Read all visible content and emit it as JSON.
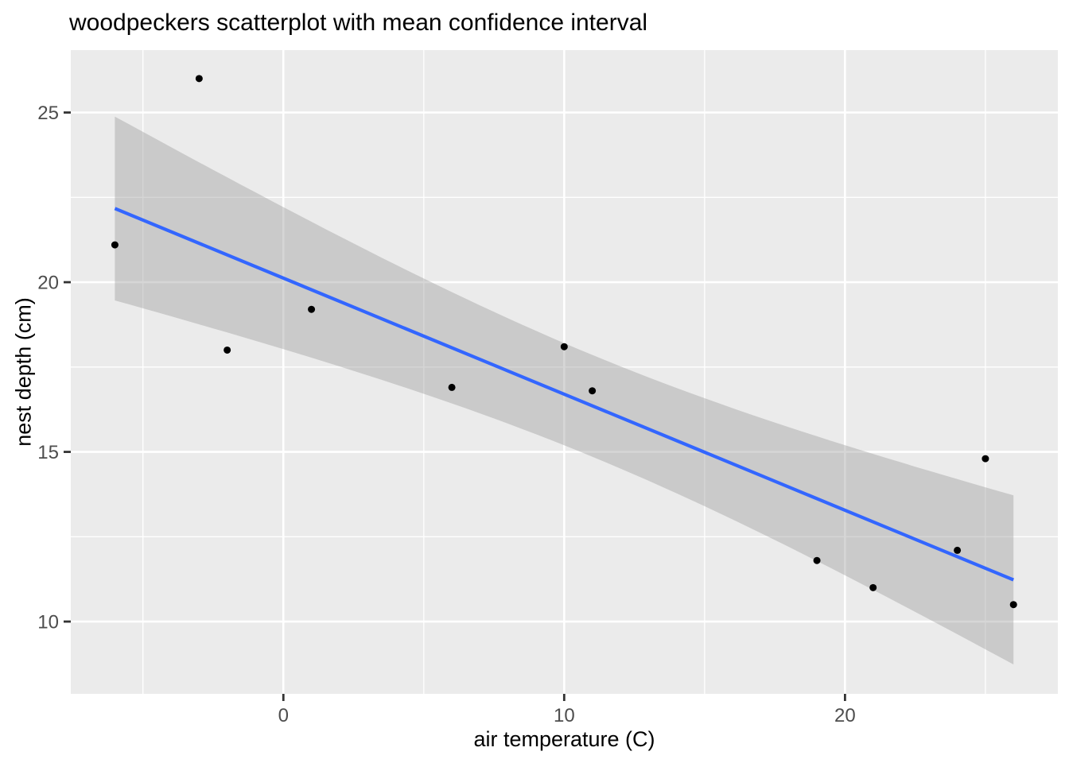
{
  "chart_data": {
    "type": "scatter",
    "title": "woodpeckers scatterplot with mean confidence interval",
    "xlabel": "air temperature (C)",
    "ylabel": "nest depth (cm)",
    "legend_position": "none",
    "grid": true,
    "xlim": [
      -7.57,
      27.58
    ],
    "ylim": [
      7.87,
      26.84
    ],
    "x_ticks": [
      0,
      10,
      20
    ],
    "y_ticks": [
      10,
      15,
      20,
      25
    ],
    "x_minor_gridlines": [
      -5,
      5,
      15,
      25
    ],
    "y_minor_gridlines": [
      12.5,
      17.5,
      22.5
    ],
    "points": [
      {
        "x": -6,
        "y": 21.1
      },
      {
        "x": -3,
        "y": 26.0
      },
      {
        "x": -2,
        "y": 18.0
      },
      {
        "x": 1,
        "y": 19.2
      },
      {
        "x": 6,
        "y": 16.9
      },
      {
        "x": 10,
        "y": 18.1
      },
      {
        "x": 11,
        "y": 16.8
      },
      {
        "x": 19,
        "y": 11.8
      },
      {
        "x": 21,
        "y": 11.0
      },
      {
        "x": 24,
        "y": 12.1
      },
      {
        "x": 25,
        "y": 14.8
      },
      {
        "x": 26,
        "y": 10.5
      }
    ],
    "smooth": {
      "method": "lm",
      "intercept": 20.12,
      "slope": -0.342,
      "x_range": [
        -6,
        26
      ],
      "ci_level": 0.95,
      "ci_half_width_base": 2.25,
      "ci_half_width_spread": 0.0176,
      "ci_center_x": 11
    },
    "colors": {
      "panel_background": "#EBEBEB",
      "gridline": "#FFFFFF",
      "ci_band": "#999999",
      "ci_band_alpha": 0.4,
      "smooth_line": "#3366FF",
      "point": "#000000",
      "tick_mark": "#333333",
      "tick_label": "#4D4D4D",
      "text": "#000000"
    }
  }
}
